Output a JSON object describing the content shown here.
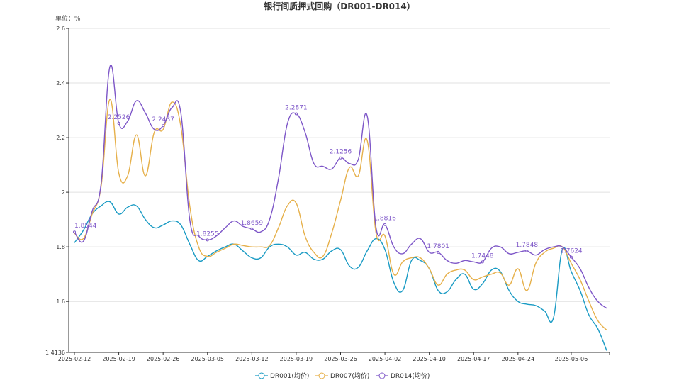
{
  "chart_data": {
    "type": "line",
    "title": "银行间质押式回购（DR001-DR014）",
    "unit_label": "单位：%",
    "ylim": [
      1.4136,
      2.6
    ],
    "y_ticks": [
      "1.4136",
      "1.6",
      "1.8",
      "2",
      "2.2",
      "2.4",
      "2.6"
    ],
    "y_tick_values": [
      1.4136,
      1.6,
      1.8,
      2.0,
      2.2,
      2.4,
      2.6
    ],
    "grid": true,
    "smooth": true,
    "legend_placement": "bottom",
    "x": [
      "2025-02-12",
      "2025-02-13",
      "2025-02-14",
      "2025-02-17",
      "2025-02-18",
      "2025-02-19",
      "2025-02-20",
      "2025-02-21",
      "2025-02-24",
      "2025-02-25",
      "2025-02-26",
      "2025-02-27",
      "2025-02-28",
      "2025-03-03",
      "2025-03-04",
      "2025-03-05",
      "2025-03-06",
      "2025-03-07",
      "2025-03-10",
      "2025-03-11",
      "2025-03-12",
      "2025-03-13",
      "2025-03-14",
      "2025-03-17",
      "2025-03-18",
      "2025-03-19",
      "2025-03-20",
      "2025-03-21",
      "2025-03-24",
      "2025-03-25",
      "2025-03-26",
      "2025-03-27",
      "2025-03-28",
      "2025-03-31",
      "2025-04-01",
      "2025-04-02",
      "2025-04-03",
      "2025-04-07",
      "2025-04-08",
      "2025-04-09",
      "2025-04-10",
      "2025-04-11",
      "2025-04-14",
      "2025-04-15",
      "2025-04-16",
      "2025-04-17",
      "2025-04-18",
      "2025-04-21",
      "2025-04-22",
      "2025-04-23",
      "2025-04-24",
      "2025-04-25",
      "2025-04-27",
      "2025-04-28",
      "2025-04-29",
      "2025-04-30",
      "2025-05-06",
      "2025-05-07",
      "2025-05-08",
      "2025-05-09",
      "2025-05-12"
    ],
    "x_tick_labels": [
      "2025-02-12",
      "2025-02-19",
      "2025-02-26",
      "2025-03-05",
      "2025-03-12",
      "2025-03-19",
      "2025-03-26",
      "2025-04-02",
      "2025-04-10",
      "2025-04-17",
      "2025-04-24",
      "2025-05-06"
    ],
    "series": [
      {
        "name": "DR001(均价)",
        "color": "#1a9bc4",
        "values": [
          1.815,
          1.86,
          1.92,
          1.95,
          1.965,
          1.92,
          1.945,
          1.95,
          1.9,
          1.87,
          1.88,
          1.895,
          1.88,
          1.81,
          1.75,
          1.765,
          1.785,
          1.8,
          1.81,
          1.785,
          1.76,
          1.76,
          1.8,
          1.81,
          1.8,
          1.77,
          1.78,
          1.755,
          1.755,
          1.785,
          1.79,
          1.73,
          1.725,
          1.785,
          1.83,
          1.79,
          1.67,
          1.64,
          1.75,
          1.75,
          1.72,
          1.64,
          1.635,
          1.68,
          1.7,
          1.645,
          1.665,
          1.715,
          1.71,
          1.64,
          1.6,
          1.59,
          1.585,
          1.565,
          1.54,
          1.79,
          1.71,
          1.64,
          1.55,
          1.5,
          1.42
        ]
      },
      {
        "name": "DR007(均价)",
        "color": "#e6b04a",
        "values": [
          1.85,
          1.83,
          1.92,
          2.02,
          2.34,
          2.07,
          2.06,
          2.21,
          2.06,
          2.22,
          2.23,
          2.33,
          2.24,
          1.95,
          1.8,
          1.765,
          1.78,
          1.795,
          1.81,
          1.805,
          1.8,
          1.8,
          1.805,
          1.87,
          1.95,
          1.96,
          1.84,
          1.78,
          1.765,
          1.85,
          1.97,
          2.09,
          2.06,
          2.19,
          1.85,
          1.84,
          1.7,
          1.745,
          1.76,
          1.76,
          1.72,
          1.66,
          1.7,
          1.715,
          1.715,
          1.68,
          1.69,
          1.7,
          1.705,
          1.66,
          1.72,
          1.64,
          1.74,
          1.78,
          1.795,
          1.8,
          1.74,
          1.68,
          1.6,
          1.53,
          1.495
        ]
      },
      {
        "name": "DR014(均价)",
        "color": "#7e57c8",
        "values": [
          1.8544,
          1.82,
          1.93,
          2.03,
          2.46,
          2.2526,
          2.26,
          2.335,
          2.29,
          2.23,
          2.2437,
          2.31,
          2.29,
          1.9,
          1.84,
          1.8255,
          1.84,
          1.87,
          1.895,
          1.875,
          1.8659,
          1.855,
          1.9,
          2.05,
          2.25,
          2.2871,
          2.22,
          2.105,
          2.095,
          2.085,
          2.1256,
          2.105,
          2.12,
          2.28,
          1.87,
          1.8816,
          1.8,
          1.775,
          1.81,
          1.83,
          1.78,
          1.7801,
          1.75,
          1.74,
          1.75,
          1.745,
          1.7448,
          1.795,
          1.8,
          1.775,
          1.78,
          1.7848,
          1.77,
          1.79,
          1.8,
          1.8,
          1.7624,
          1.72,
          1.65,
          1.6,
          1.575
        ]
      }
    ],
    "annotations": {
      "series": "DR014(均价)",
      "points": [
        {
          "x": "2025-02-12",
          "label": "1.8544"
        },
        {
          "x": "2025-02-19",
          "label": "2.2526"
        },
        {
          "x": "2025-02-26",
          "label": "2.2437"
        },
        {
          "x": "2025-03-05",
          "label": "1.8255"
        },
        {
          "x": "2025-03-12",
          "label": "1.8659"
        },
        {
          "x": "2025-03-19",
          "label": "2.2871"
        },
        {
          "x": "2025-03-26",
          "label": "2.1256"
        },
        {
          "x": "2025-04-02",
          "label": "1.8816"
        },
        {
          "x": "2025-04-11",
          "label": "1.7801"
        },
        {
          "x": "2025-04-18",
          "label": "1.7448"
        },
        {
          "x": "2025-04-25",
          "label": "1.7848"
        },
        {
          "x": "2025-05-06",
          "label": "1.7624"
        }
      ]
    }
  }
}
